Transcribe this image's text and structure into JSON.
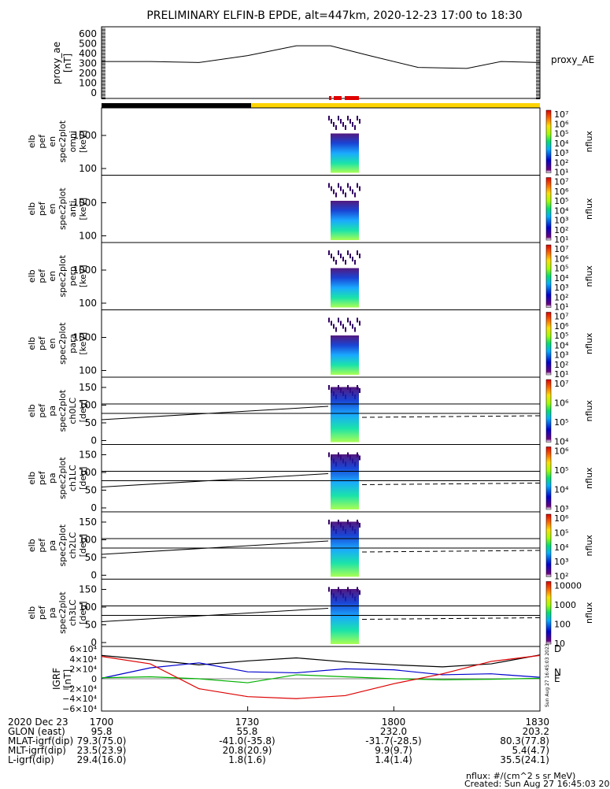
{
  "title": "PRELIMINARY ELFIN-B EPDE, alt=447km, 2020-12-23 17:00 to 18:30",
  "proxy_ae": {
    "ylabel": [
      "proxy_ae",
      "[nT]"
    ],
    "yticks": [
      "600",
      "500",
      "400",
      "300",
      "200",
      "100",
      "0"
    ],
    "side_label": "proxy_AE"
  },
  "spectrogram_panels": [
    {
      "ylabel": [
        "elb",
        "pef",
        "en",
        "spec2plot",
        "omni",
        "[keV]"
      ],
      "yticks": [
        "1000",
        "100"
      ],
      "cbar_label": "nflux",
      "cbar_ticks": [
        "10⁷",
        "10⁶",
        "10⁵",
        "10⁴",
        "10³",
        "10²",
        "10¹"
      ]
    },
    {
      "ylabel": [
        "elb",
        "pef",
        "en",
        "spec2plot",
        "anti",
        "[keV]"
      ],
      "yticks": [
        "1000",
        "100"
      ],
      "cbar_label": "nflux",
      "cbar_ticks": [
        "10⁷",
        "10⁶",
        "10⁵",
        "10⁴",
        "10³",
        "10²",
        "10¹"
      ]
    },
    {
      "ylabel": [
        "elb",
        "pef",
        "en",
        "spec2plot",
        "perp",
        "[keV]"
      ],
      "yticks": [
        "1000",
        "100"
      ],
      "cbar_label": "nflux",
      "cbar_ticks": [
        "10⁷",
        "10⁶",
        "10⁵",
        "10⁴",
        "10³",
        "10²",
        "10¹"
      ]
    },
    {
      "ylabel": [
        "elb",
        "pef",
        "en",
        "spec2plot",
        "para",
        "[keV]"
      ],
      "yticks": [
        "1000",
        "100"
      ],
      "cbar_label": "nflux",
      "cbar_ticks": [
        "10⁷",
        "10⁶",
        "10⁵",
        "10⁴",
        "10³",
        "10²",
        "10¹"
      ]
    },
    {
      "ylabel": [
        "elb",
        "pef",
        "pa",
        "spec2plot",
        "ch0LC",
        "[deg]"
      ],
      "yticks": [
        "150",
        "100",
        "50",
        "0"
      ],
      "cbar_label": "nflux",
      "cbar_ticks": [
        "10⁷",
        "10⁶",
        "10⁵",
        "10⁴"
      ]
    },
    {
      "ylabel": [
        "elb",
        "pef",
        "pa",
        "spec2plot",
        "ch1LC",
        "[deg]"
      ],
      "yticks": [
        "150",
        "100",
        "50",
        "0"
      ],
      "cbar_label": "nflux",
      "cbar_ticks": [
        "10⁶",
        "10⁵",
        "10⁴",
        "10³"
      ]
    },
    {
      "ylabel": [
        "elb",
        "pef",
        "pa",
        "spec2plot",
        "ch2LC",
        "[deg]"
      ],
      "yticks": [
        "150",
        "100",
        "50",
        "0"
      ],
      "cbar_label": "nflux",
      "cbar_ticks": [
        "10⁶",
        "10⁵",
        "10⁴",
        "10³",
        "10²"
      ]
    },
    {
      "ylabel": [
        "elb",
        "pef",
        "pa",
        "spec2plot",
        "ch3LC",
        "[deg]"
      ],
      "yticks": [
        "150",
        "100",
        "50",
        "0"
      ],
      "cbar_label": "nflux",
      "cbar_ticks": [
        "10000",
        "1000",
        "100",
        "10"
      ]
    }
  ],
  "igrf": {
    "ylabel": [
      "IGRF",
      "[nT]"
    ],
    "yticks": [
      "6×10⁴",
      "4×10⁴",
      "2×10⁴",
      "0",
      "−2×10⁴",
      "−4×10⁴",
      "−6×10⁴"
    ],
    "components": [
      "D",
      "N",
      "E"
    ],
    "stamp": "Sun Aug 27 16:45:03 2023"
  },
  "colors": {
    "black_bar": "#000000",
    "yellow_bar": "#ffd400",
    "red_marks": "#e00000",
    "igrf_black": "#000000",
    "igrf_blue": "#0000cc",
    "igrf_green": "#00b000",
    "igrf_red": "#dd0000"
  },
  "chart_data": {
    "type": "line",
    "title": "PRELIMINARY ELFIN-B EPDE, alt=447km, 2020-12-23 17:00 to 18:30",
    "x_ticks": [
      "1700",
      "1730",
      "1800",
      "1830"
    ],
    "proxy_ae": {
      "x": [
        "17:00",
        "17:10",
        "17:20",
        "17:30",
        "17:40",
        "17:47",
        "17:55",
        "18:05",
        "18:15",
        "18:22",
        "18:30"
      ],
      "y": [
        320,
        320,
        310,
        380,
        480,
        480,
        380,
        260,
        250,
        320,
        310
      ],
      "ylim": [
        0,
        650
      ]
    },
    "igrf_series": [
      {
        "x": [
          "17:00",
          "17:10",
          "17:20",
          "17:30",
          "17:40",
          "17:50",
          "18:00",
          "18:10",
          "18:20",
          "18:30"
        ],
        "y": [
          47000,
          38000,
          28000,
          36000,
          42000,
          34000,
          28000,
          24000,
          30000,
          48000
        ]
      },
      {
        "x": [
          "17:00",
          "17:10",
          "17:20",
          "17:30",
          "17:40",
          "17:50",
          "18:00",
          "18:10",
          "18:20",
          "18:30"
        ],
        "y": [
          1000,
          22000,
          32000,
          14000,
          12000,
          20000,
          18000,
          8000,
          10000,
          3000
        ]
      },
      {
        "x": [
          "17:00",
          "17:10",
          "17:20",
          "17:30",
          "17:40",
          "17:50",
          "18:00",
          "18:10",
          "18:20",
          "18:30"
        ],
        "y": [
          2000,
          4000,
          0,
          -8000,
          8000,
          4000,
          0,
          -2000,
          -1000,
          1000
        ]
      },
      {
        "x": [
          "17:00",
          "17:10",
          "17:20",
          "17:30",
          "17:40",
          "17:50",
          "18:00",
          "18:10",
          "18:20",
          "18:30"
        ],
        "y": [
          45000,
          30000,
          -20000,
          -36000,
          -40000,
          -34000,
          -10000,
          10000,
          35000,
          47000
        ]
      }
    ],
    "igrf_ylim": [
      -65000,
      65000
    ]
  },
  "footer": {
    "rows": [
      {
        "label": "2020 Dec 23",
        "values": [
          "1700",
          "1730",
          "1800",
          "1830"
        ]
      },
      {
        "label": "GLON (east)",
        "values": [
          "95.8",
          "55.8",
          "232.0",
          "203.2"
        ]
      },
      {
        "label": "MLAT-igrf(dip)",
        "values": [
          "79.3(75.0)",
          "-41.0(-35.8)",
          "-31.7(-28.5)",
          "80.3(77.8)"
        ]
      },
      {
        "label": "MLT-igrf(dip)",
        "values": [
          "23.5(23.9)",
          "20.8(20.9)",
          "9.9(9.7)",
          "5.4(4.7)"
        ]
      },
      {
        "label": "L-igrf(dip)",
        "values": [
          "29.4(16.0)",
          "1.8(1.6)",
          "1.4(1.4)",
          "35.5(24.1)"
        ]
      }
    ],
    "units_note": "nflux: #/(cm^2 s sr MeV)",
    "created": "Created: Sun Aug 27 16:45:03 2023"
  }
}
